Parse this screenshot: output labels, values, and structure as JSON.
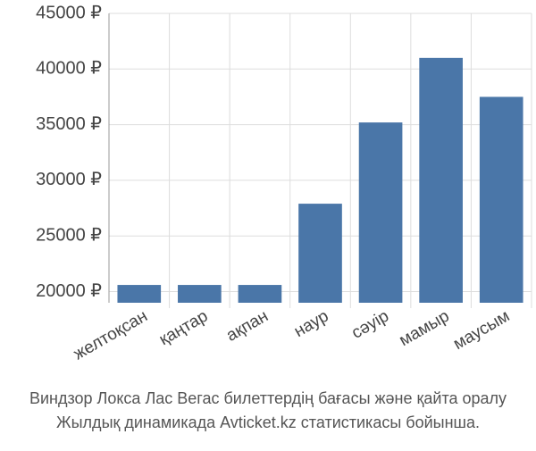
{
  "chart_data": {
    "type": "bar",
    "title": "Виндзор Локса Лас Вегас билеттердің бағасы және қайта оралу",
    "subtitle": "Жылдық динамикада Avticket.kz статистикасы бойынша.",
    "categories": [
      "желтоқсан",
      "қаңтар",
      "ақпан",
      "наур",
      "сәуір",
      "мамыр",
      "маусым"
    ],
    "values": [
      20600,
      20600,
      20600,
      27900,
      35200,
      41000,
      37500
    ],
    "color": "#4a76a8",
    "ylim": [
      19000,
      45000
    ],
    "yticks": [
      {
        "value": 20000,
        "label": "20000 ₽"
      },
      {
        "value": 25000,
        "label": "25000 ₽"
      },
      {
        "value": 30000,
        "label": "30000 ₽"
      },
      {
        "value": 35000,
        "label": "35000 ₽"
      },
      {
        "value": 40000,
        "label": "40000 ₽"
      },
      {
        "value": 45000,
        "label": "45000 ₽"
      }
    ],
    "grid": true
  }
}
